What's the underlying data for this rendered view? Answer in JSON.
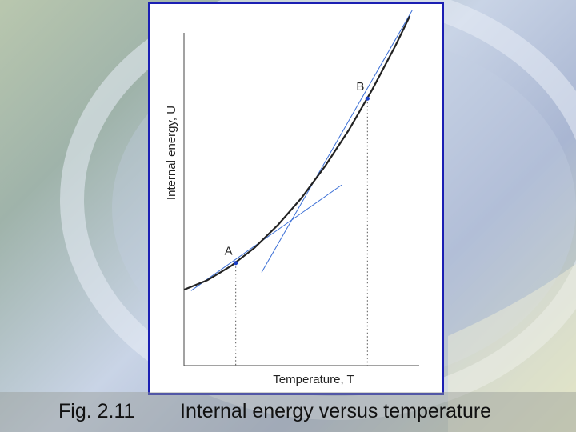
{
  "slide": {
    "figure_number": "Fig. 2.11",
    "caption": "Internal energy versus temperature",
    "colors": {
      "frame": "#1b1fb3",
      "curve": "#222222",
      "tangent": "#3b6fd6",
      "point": "#1b3fc4"
    }
  },
  "chart_data": {
    "type": "line",
    "title": "",
    "xlabel": "Temperature, T",
    "ylabel": "Internal energy, U",
    "xlim": [
      0,
      10
    ],
    "ylim": [
      0,
      10
    ],
    "grid": false,
    "ticks": false,
    "curve": {
      "x": [
        0.0,
        1.0,
        2.0,
        3.0,
        4.0,
        5.0,
        6.0,
        7.0,
        8.0,
        9.0,
        9.6
      ],
      "y": [
        2.25,
        2.53,
        2.95,
        3.49,
        4.17,
        4.97,
        5.91,
        6.97,
        8.17,
        9.49,
        10.35
      ]
    },
    "points": [
      {
        "label": "A",
        "x": 2.2,
        "y": 3.04
      },
      {
        "label": "B",
        "x": 7.8,
        "y": 7.91
      }
    ],
    "tangents": [
      {
        "at": "A",
        "x": [
          0.3,
          6.7
        ],
        "y": [
          2.22,
          5.35
        ]
      },
      {
        "at": "B",
        "x": [
          3.3,
          9.7
        ],
        "y": [
          2.76,
          10.52
        ]
      }
    ]
  }
}
